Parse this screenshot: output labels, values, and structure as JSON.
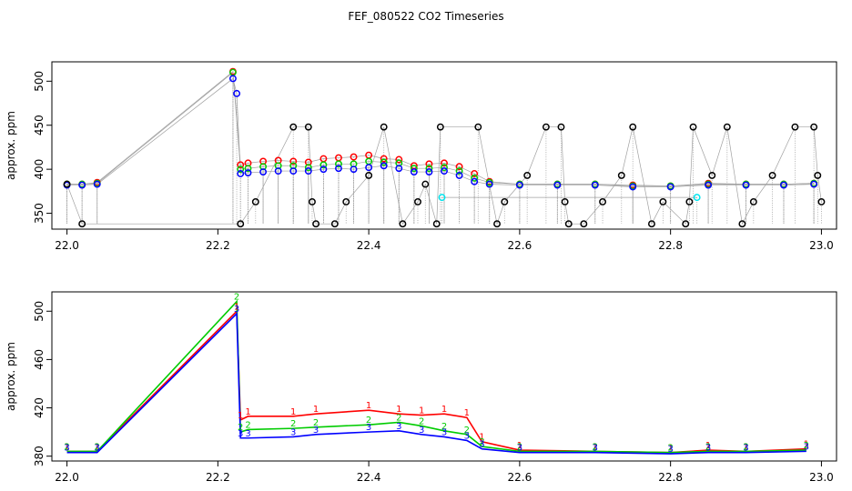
{
  "figure": {
    "title": "FEF_080522  CO2 Timeseries"
  },
  "colors": {
    "red": "#ff0000",
    "green": "#00cc00",
    "blue": "#0000ff",
    "black": "#000000",
    "cyan": "#00e5ee",
    "grey": "#a0a0a0"
  },
  "chart_data": [
    {
      "type": "scatter",
      "panel": "top",
      "title": "",
      "xlabel": "",
      "ylabel": "approx. ppm",
      "xlim": [
        21.98,
        23.02
      ],
      "ylim": [
        332,
        522
      ],
      "xticks": [
        "22.0",
        "22.2",
        "22.4",
        "22.6",
        "22.8",
        "23.0"
      ],
      "yticks": [
        "350",
        "400",
        "450",
        "500"
      ],
      "grid": false,
      "marker": "open circle",
      "series": [
        {
          "color": "red",
          "x": [
            22.0,
            22.02,
            22.04,
            22.22,
            22.23,
            22.24,
            22.26,
            22.28,
            22.3,
            22.32,
            22.34,
            22.36,
            22.38,
            22.4,
            22.42,
            22.44,
            22.46,
            22.48,
            22.5,
            22.52,
            22.54,
            22.56,
            22.6,
            22.65,
            22.7,
            22.75,
            22.8,
            22.85,
            22.9,
            22.95,
            22.99
          ],
          "y": [
            383,
            383,
            385,
            511,
            405,
            407,
            409,
            410,
            409,
            408,
            412,
            413,
            414,
            416,
            412,
            411,
            404,
            406,
            407,
            403,
            395,
            386,
            383,
            383,
            383,
            382,
            381,
            384,
            383,
            383,
            384
          ]
        },
        {
          "color": "green",
          "x": [
            22.0,
            22.02,
            22.04,
            22.22,
            22.23,
            22.24,
            22.26,
            22.28,
            22.3,
            22.32,
            22.34,
            22.36,
            22.38,
            22.4,
            22.42,
            22.44,
            22.46,
            22.48,
            22.5,
            22.52,
            22.54,
            22.56,
            22.6,
            22.65,
            22.7,
            22.75,
            22.8,
            22.85,
            22.9,
            22.95,
            22.99
          ],
          "y": [
            383,
            383,
            384,
            510,
            400,
            401,
            403,
            404,
            404,
            402,
            405,
            406,
            406,
            409,
            408,
            407,
            401,
            401,
            402,
            398,
            390,
            385,
            383,
            383,
            383,
            381,
            381,
            383,
            383,
            383,
            384
          ]
        },
        {
          "color": "blue",
          "x": [
            22.0,
            22.02,
            22.04,
            22.22,
            22.225,
            22.23,
            22.24,
            22.26,
            22.28,
            22.3,
            22.32,
            22.34,
            22.36,
            22.38,
            22.4,
            22.42,
            22.44,
            22.46,
            22.48,
            22.5,
            22.52,
            22.54,
            22.56,
            22.6,
            22.65,
            22.7,
            22.75,
            22.8,
            22.85,
            22.9,
            22.95,
            22.99
          ],
          "y": [
            382,
            382,
            383,
            503,
            486,
            395,
            396,
            397,
            398,
            398,
            398,
            400,
            401,
            400,
            402,
            404,
            401,
            397,
            397,
            398,
            393,
            386,
            383,
            382,
            382,
            382,
            380,
            380,
            382,
            382,
            382,
            383
          ]
        },
        {
          "color": "black",
          "x": [
            22.0,
            22.02,
            22.23,
            22.25,
            22.3,
            22.32,
            22.325,
            22.33,
            22.355,
            22.37,
            22.4,
            22.42,
            22.445,
            22.465,
            22.475,
            22.49,
            22.495,
            22.545,
            22.57,
            22.58,
            22.61,
            22.635,
            22.655,
            22.66,
            22.665,
            22.685,
            22.71,
            22.735,
            22.75,
            22.775,
            22.79,
            22.82,
            22.825,
            22.83,
            22.855,
            22.875,
            22.895,
            22.91,
            22.935,
            22.965,
            22.99,
            22.995,
            23.0
          ],
          "y": [
            383,
            338,
            338,
            363,
            448,
            448,
            363,
            338,
            338,
            363,
            393,
            448,
            338,
            363,
            383,
            338,
            448,
            448,
            338,
            363,
            393,
            448,
            448,
            363,
            338,
            338,
            363,
            393,
            448,
            338,
            363,
            338,
            363,
            448,
            393,
            448,
            338,
            363,
            393,
            448,
            448,
            393,
            363
          ]
        },
        {
          "color": "cyan",
          "x": [
            22.497,
            22.835
          ],
          "y": [
            368,
            368
          ]
        }
      ]
    },
    {
      "type": "line",
      "panel": "bottom",
      "title": "",
      "xlabel": "",
      "ylabel": "approx. ppm",
      "xlim": [
        21.98,
        23.02
      ],
      "ylim": [
        376,
        516
      ],
      "xticks": [
        "22.0",
        "22.2",
        "22.4",
        "22.6",
        "22.8",
        "23.0"
      ],
      "yticks": [
        "380",
        "420",
        "460",
        "500"
      ],
      "grid": false,
      "markers": "digits 1 / 2 / 3 (red, green, blue)",
      "series": [
        {
          "color": "red",
          "label": "1",
          "x": [
            22.0,
            22.04,
            22.225,
            22.23,
            22.24,
            22.3,
            22.33,
            22.4,
            22.44,
            22.47,
            22.5,
            22.53,
            22.55,
            22.6,
            22.7,
            22.8,
            22.85,
            22.9,
            22.98
          ],
          "y": [
            384,
            384,
            500,
            410,
            413,
            413,
            415,
            418,
            415,
            414,
            415,
            412,
            392,
            385,
            384,
            383,
            385,
            384,
            386
          ]
        },
        {
          "color": "green",
          "label": "2",
          "x": [
            22.0,
            22.04,
            22.225,
            22.23,
            22.24,
            22.3,
            22.33,
            22.4,
            22.44,
            22.47,
            22.5,
            22.53,
            22.55,
            22.6,
            22.7,
            22.8,
            22.85,
            22.9,
            22.98
          ],
          "y": [
            384,
            384,
            508,
            400,
            402,
            403,
            404,
            406,
            408,
            405,
            401,
            398,
            388,
            384,
            384,
            383,
            384,
            384,
            385
          ]
        },
        {
          "color": "blue",
          "label": "3",
          "x": [
            22.0,
            22.04,
            22.225,
            22.23,
            22.24,
            22.3,
            22.33,
            22.4,
            22.44,
            22.47,
            22.5,
            22.53,
            22.55,
            22.6,
            22.7,
            22.8,
            22.85,
            22.9,
            22.98
          ],
          "y": [
            383,
            383,
            498,
            395,
            395,
            396,
            398,
            400,
            401,
            398,
            396,
            393,
            386,
            383,
            383,
            382,
            383,
            383,
            384
          ]
        }
      ]
    }
  ]
}
